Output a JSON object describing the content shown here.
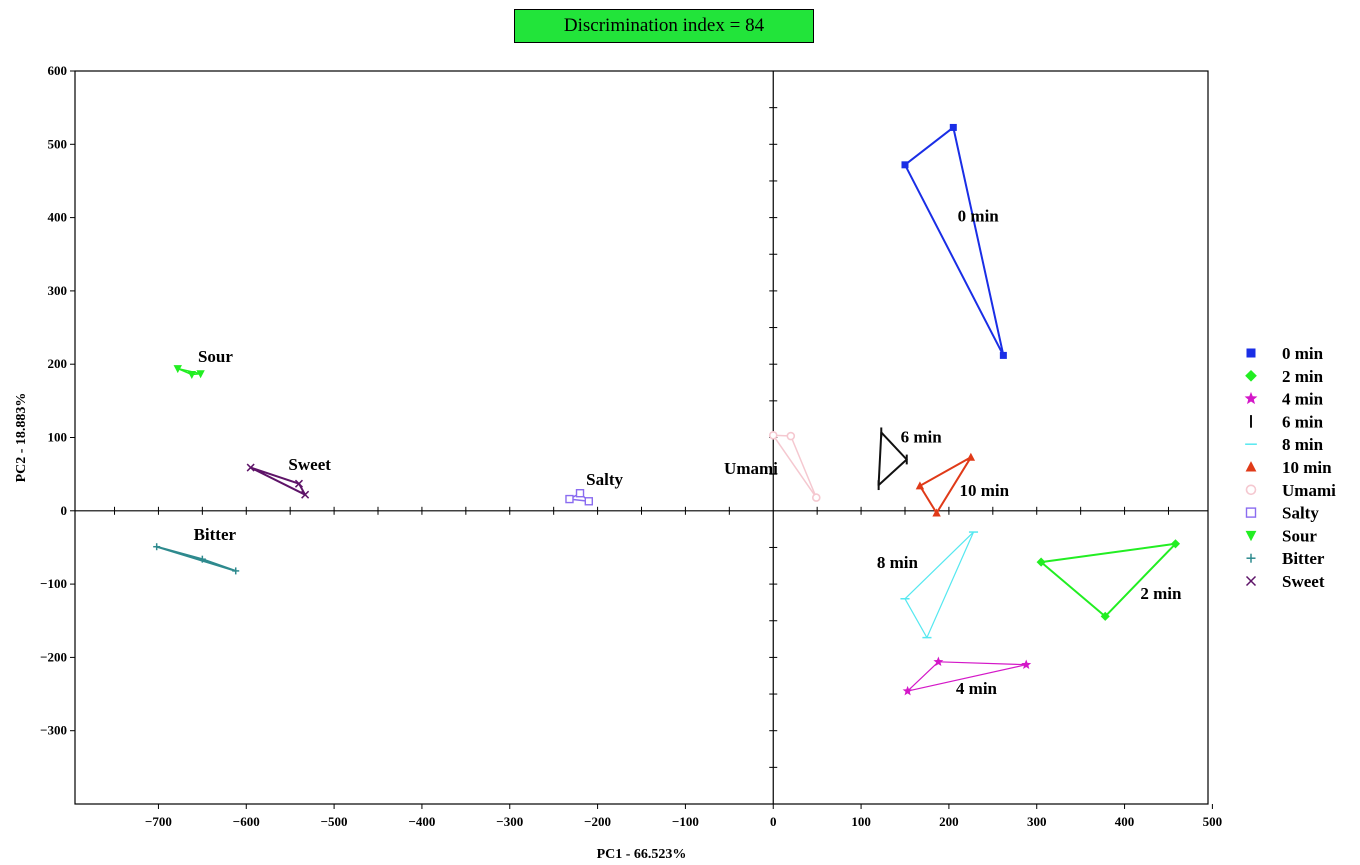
{
  "chart_data": {
    "type": "scatter",
    "title": "Discrimination index = 84",
    "xlabel": "PC1 - 66.523%",
    "ylabel": "PC2 - 18.883%",
    "xlim": [
      -795,
      495
    ],
    "ylim": [
      -400,
      600
    ],
    "xticks": [
      -700,
      -600,
      -500,
      -400,
      -300,
      -200,
      -100,
      0,
      100,
      200,
      300,
      400,
      500
    ],
    "yticks": [
      -300,
      -200,
      -100,
      0,
      100,
      200,
      300,
      400,
      500,
      600
    ],
    "xtick_labels": [
      "−700",
      "−600",
      "−500",
      "−400",
      "−300",
      "−200",
      "−100",
      "0",
      "100",
      "200",
      "300",
      "400",
      "500"
    ],
    "ytick_labels": [
      "−300",
      "−200",
      "−100",
      "0",
      "100",
      "200",
      "300",
      "400",
      "500",
      "600"
    ],
    "grid": false,
    "legend_position": "right",
    "series": [
      {
        "name": "0 min",
        "color": "#1a2ee6",
        "marker": "square",
        "line_width": 2,
        "points": [
          [
            150,
            472
          ],
          [
            205,
            523
          ],
          [
            262,
            212
          ]
        ]
      },
      {
        "name": "2 min",
        "color": "#22ee22",
        "marker": "diamond",
        "line_width": 2,
        "points": [
          [
            305,
            -70
          ],
          [
            458,
            -45
          ],
          [
            378,
            -144
          ]
        ]
      },
      {
        "name": "4 min",
        "color": "#d418c8",
        "marker": "star",
        "line_width": 1.2,
        "points": [
          [
            153,
            -246
          ],
          [
            188,
            -206
          ],
          [
            288,
            -210
          ]
        ]
      },
      {
        "name": "6 min",
        "color": "#111111",
        "marker": "vbar",
        "line_width": 2,
        "points": [
          [
            120,
            35
          ],
          [
            123,
            107
          ],
          [
            152,
            70
          ]
        ]
      },
      {
        "name": "8 min",
        "color": "#55e8f0",
        "marker": "hbar",
        "line_width": 1.2,
        "points": [
          [
            150,
            -120
          ],
          [
            175,
            -173
          ],
          [
            228,
            -29
          ]
        ]
      },
      {
        "name": "10 min",
        "color": "#e03a18",
        "marker": "triangle",
        "line_width": 2,
        "points": [
          [
            167,
            34
          ],
          [
            186,
            -3
          ],
          [
            225,
            73
          ]
        ]
      },
      {
        "name": "Umami",
        "color": "#f5c8d0",
        "marker": "circle",
        "line_width": 1.5,
        "points": [
          [
            0,
            103
          ],
          [
            20,
            102
          ],
          [
            49,
            18
          ]
        ]
      },
      {
        "name": "Salty",
        "color": "#8a6cf0",
        "marker": "square-open",
        "line_width": 1.5,
        "points": [
          [
            -232,
            16
          ],
          [
            -220,
            24
          ],
          [
            -210,
            13
          ]
        ]
      },
      {
        "name": "Sour",
        "color": "#22ee22",
        "marker": "triangle-down",
        "line_width": 1.5,
        "points": [
          [
            -678,
            194
          ],
          [
            -662,
            186
          ],
          [
            -652,
            187
          ]
        ]
      },
      {
        "name": "Bitter",
        "color": "#2e8a8e",
        "marker": "plus",
        "line_width": 2,
        "points": [
          [
            -702,
            -49
          ],
          [
            -650,
            -66
          ],
          [
            -612,
            -82
          ]
        ]
      },
      {
        "name": "Sweet",
        "color": "#5e1468",
        "marker": "x",
        "line_width": 2,
        "points": [
          [
            -595,
            59
          ],
          [
            -540,
            37
          ],
          [
            -533,
            22
          ]
        ]
      }
    ],
    "annotations": [
      {
        "text": "0 min",
        "x": 210,
        "y": 395
      },
      {
        "text": "2 min",
        "x": 418,
        "y": -120
      },
      {
        "text": "4 min",
        "x": 208,
        "y": -250
      },
      {
        "text": "6 min",
        "x": 145,
        "y": 93
      },
      {
        "text": "8 min",
        "x": 118,
        "y": -78
      },
      {
        "text": "10 min",
        "x": 212,
        "y": 20
      },
      {
        "text": "Umami",
        "x": -56,
        "y": 50
      },
      {
        "text": "Salty",
        "x": -213,
        "y": 35
      },
      {
        "text": "Sour",
        "x": -655,
        "y": 203
      },
      {
        "text": "Sweet",
        "x": -552,
        "y": 56
      },
      {
        "text": "Bitter",
        "x": -660,
        "y": -40
      }
    ]
  }
}
